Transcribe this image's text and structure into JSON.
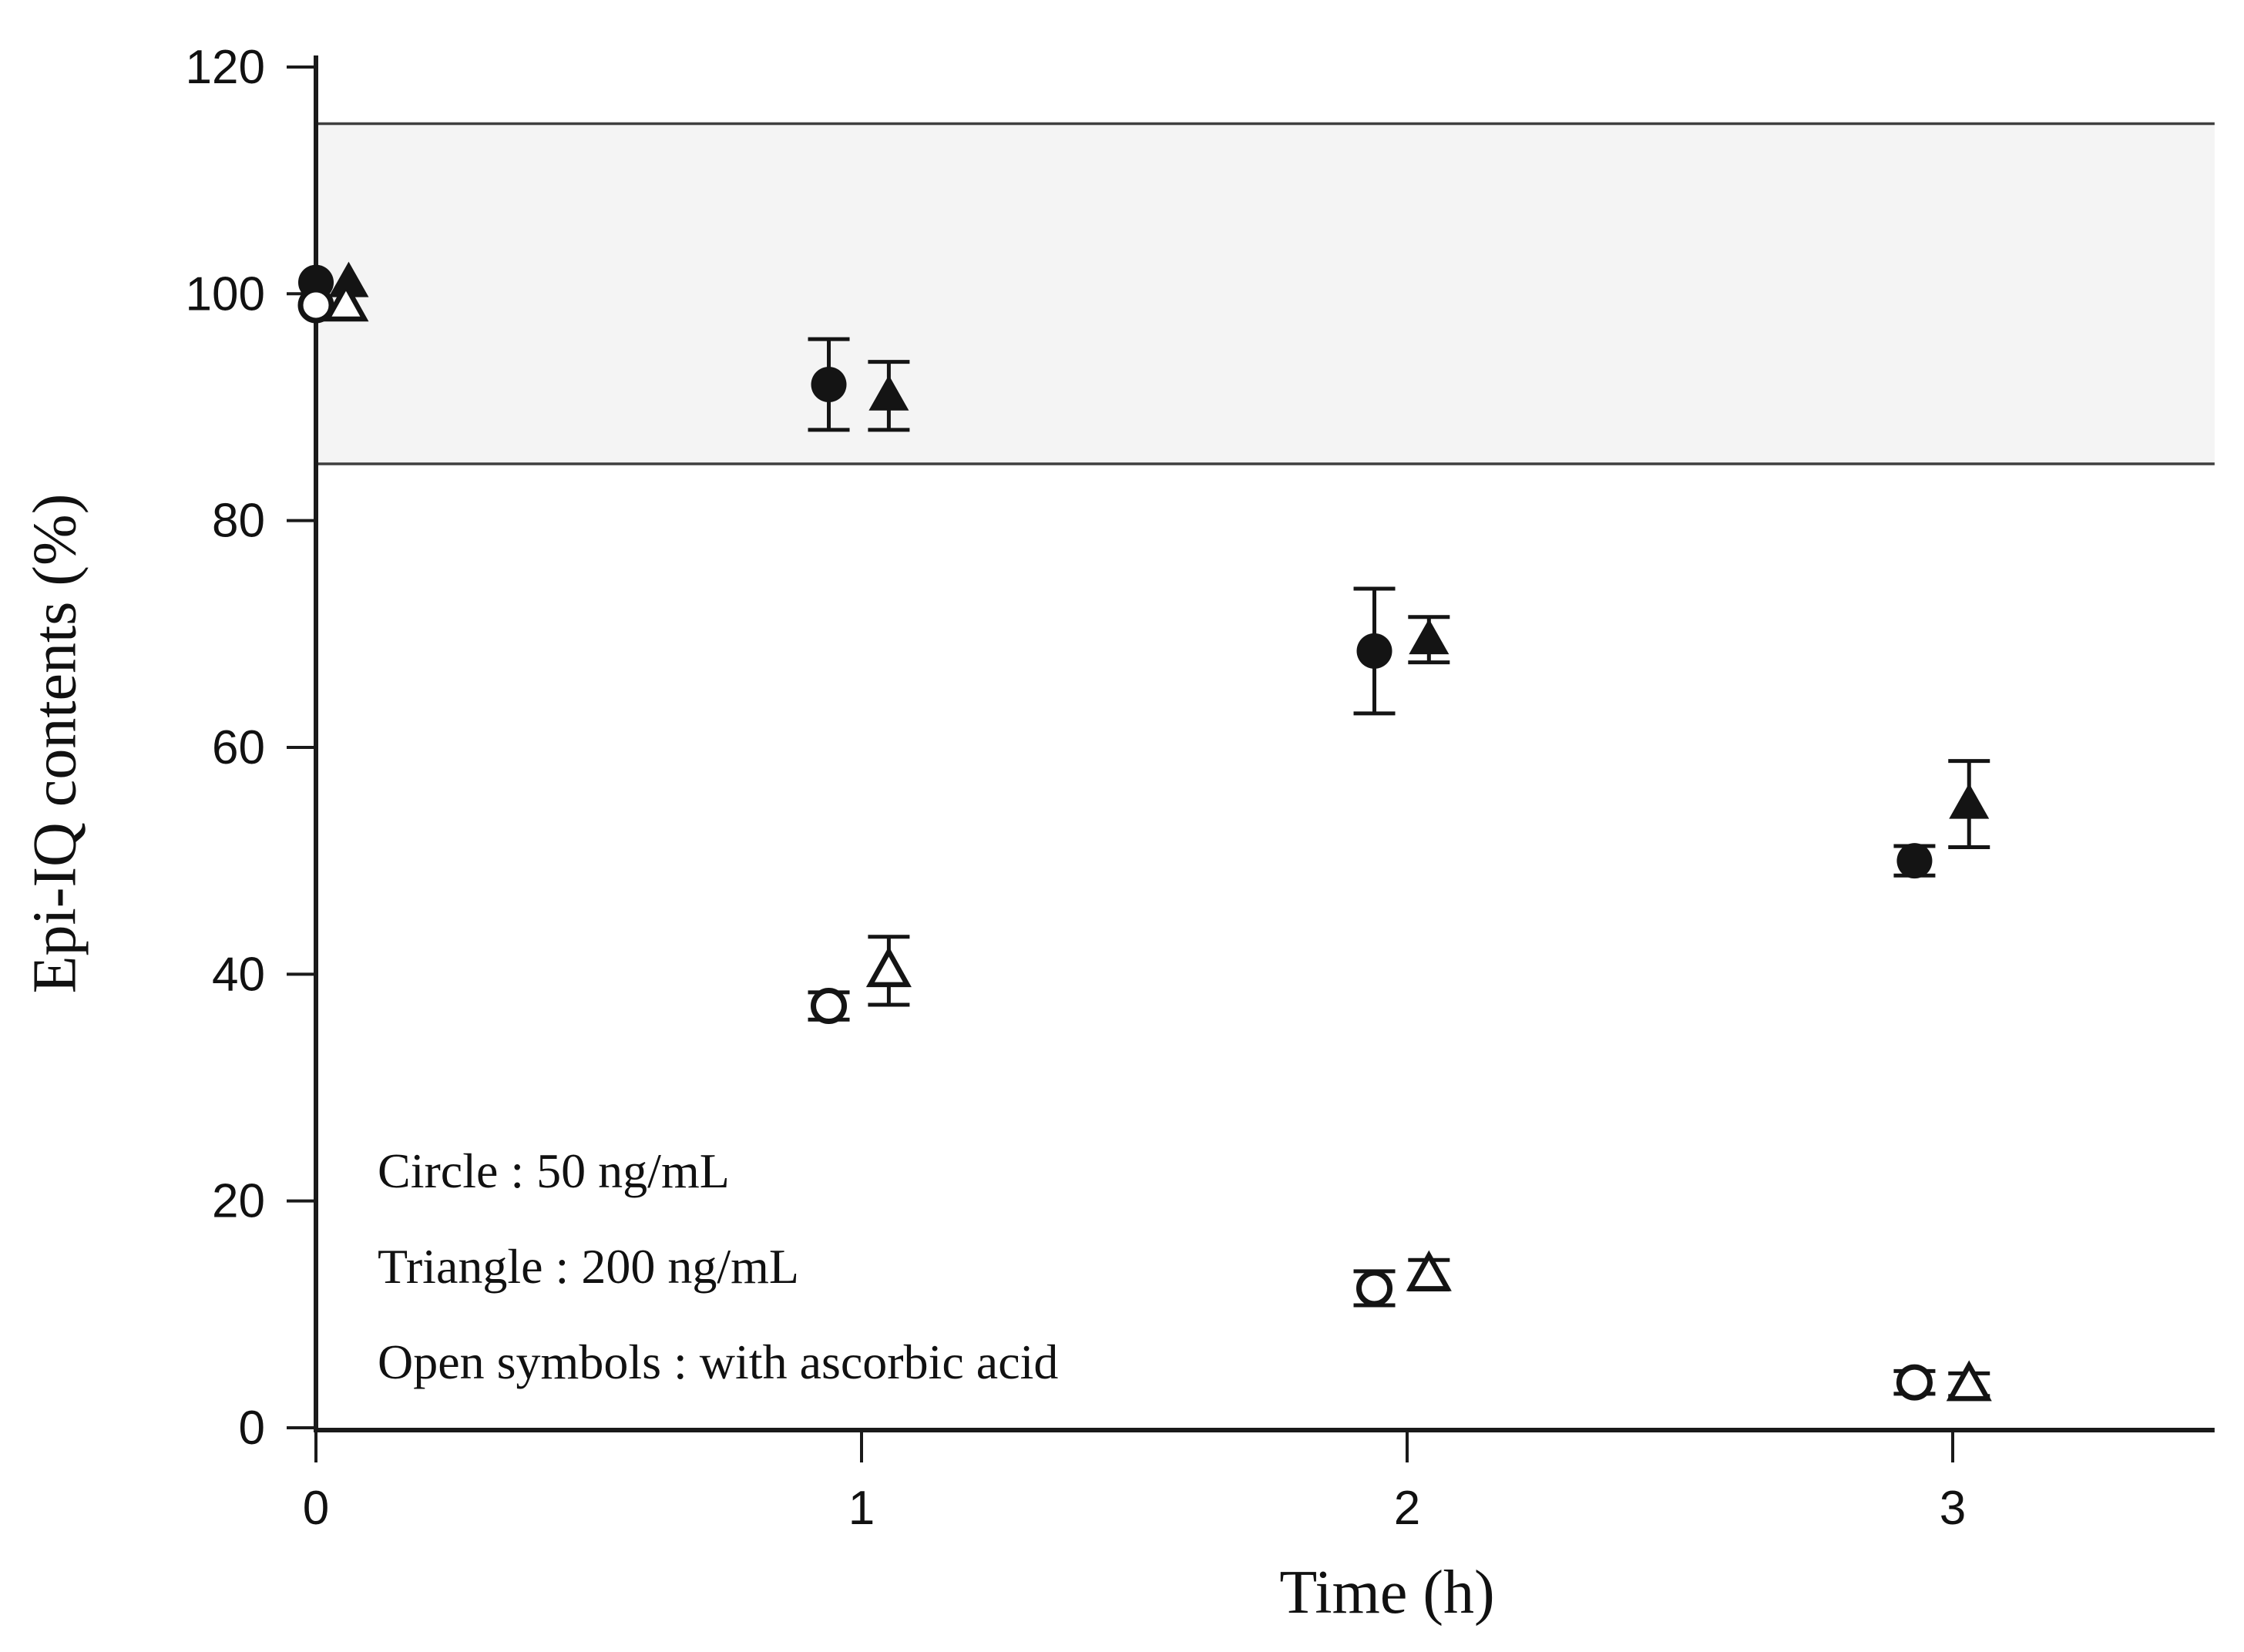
{
  "figure": {
    "background": "#ffffff",
    "marker_color": "#141414",
    "axis_color": "#1a1a1a",
    "tick_label_color": "#111111"
  },
  "chart_data": {
    "type": "scatter",
    "title": "",
    "xlabel": "Time (h)",
    "ylabel": "Epi-IQ contents (%)",
    "xlim": [
      0,
      3.48
    ],
    "ylim": [
      0,
      121
    ],
    "xticks": [
      0,
      1,
      2,
      3
    ],
    "yticks": [
      0,
      20,
      40,
      60,
      80,
      100,
      120
    ],
    "grid": false,
    "legend_position": "inside-bottom-left",
    "legend": [
      "Circle : 50 ng/mL",
      "Triangle : 200 ng/mL",
      "Open symbols : with ascorbic acid"
    ],
    "reference_band": {
      "from": 85,
      "to": 115,
      "fill": "#f4f4f4",
      "border": "#3f3f3f"
    },
    "series": [
      {
        "name": "50 ng/mL",
        "marker": "circle",
        "fill": "filled",
        "points": [
          {
            "x": 0.0,
            "y": 101,
            "err": 0
          },
          {
            "x": 0.94,
            "y": 92,
            "err": 4
          },
          {
            "x": 1.94,
            "y": 68.5,
            "err": 5.5
          },
          {
            "x": 2.93,
            "y": 50,
            "err": 1.3
          }
        ]
      },
      {
        "name": "200 ng/mL",
        "marker": "triangle",
        "fill": "filled",
        "points": [
          {
            "x": 0.06,
            "y": 101,
            "err": 0
          },
          {
            "x": 1.05,
            "y": 91,
            "err": 3
          },
          {
            "x": 2.04,
            "y": 69.5,
            "err": 2
          },
          {
            "x": 3.03,
            "y": 55,
            "err": 3.8
          }
        ]
      },
      {
        "name": "50 ng/mL with ascorbic acid",
        "marker": "circle",
        "fill": "open",
        "points": [
          {
            "x": 0.0,
            "y": 99,
            "err": 0
          },
          {
            "x": 0.94,
            "y": 37.2,
            "err": 1.2
          },
          {
            "x": 1.94,
            "y": 12.3,
            "err": 1.5
          },
          {
            "x": 2.93,
            "y": 4.0,
            "err": 1.0
          }
        ]
      },
      {
        "name": "200 ng/mL with ascorbic acid",
        "marker": "triangle",
        "fill": "open",
        "points": [
          {
            "x": 0.055,
            "y": 99,
            "err": 0
          },
          {
            "x": 1.05,
            "y": 40.3,
            "err": 3
          },
          {
            "x": 2.04,
            "y": 13.5,
            "err": 1.3
          },
          {
            "x": 3.03,
            "y": 3.8,
            "err": 1.0
          }
        ]
      }
    ]
  }
}
